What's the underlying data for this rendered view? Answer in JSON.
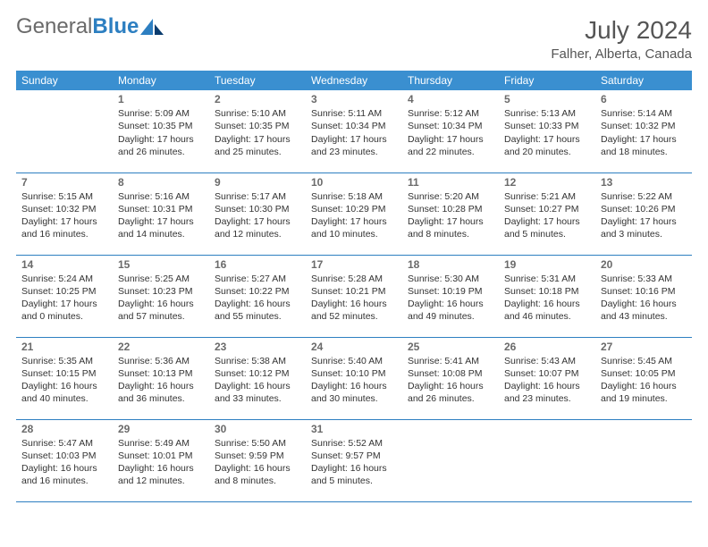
{
  "brand": {
    "part1": "General",
    "part2": "Blue"
  },
  "header": {
    "title": "July 2024",
    "location": "Falher, Alberta, Canada"
  },
  "calendar": {
    "type": "table",
    "columns": [
      "Sunday",
      "Monday",
      "Tuesday",
      "Wednesday",
      "Thursday",
      "Friday",
      "Saturday"
    ],
    "header_bg": "#3a8fd0",
    "header_fg": "#ffffff",
    "rule_color": "#2d7fc1",
    "body_fontsize": 10.5,
    "daynum_color": "#6a6a6a",
    "rows": [
      [
        null,
        {
          "n": "1",
          "sr": "5:09 AM",
          "ss": "10:35 PM",
          "dl": "17 hours and 26 minutes."
        },
        {
          "n": "2",
          "sr": "5:10 AM",
          "ss": "10:35 PM",
          "dl": "17 hours and 25 minutes."
        },
        {
          "n": "3",
          "sr": "5:11 AM",
          "ss": "10:34 PM",
          "dl": "17 hours and 23 minutes."
        },
        {
          "n": "4",
          "sr": "5:12 AM",
          "ss": "10:34 PM",
          "dl": "17 hours and 22 minutes."
        },
        {
          "n": "5",
          "sr": "5:13 AM",
          "ss": "10:33 PM",
          "dl": "17 hours and 20 minutes."
        },
        {
          "n": "6",
          "sr": "5:14 AM",
          "ss": "10:32 PM",
          "dl": "17 hours and 18 minutes."
        }
      ],
      [
        {
          "n": "7",
          "sr": "5:15 AM",
          "ss": "10:32 PM",
          "dl": "17 hours and 16 minutes."
        },
        {
          "n": "8",
          "sr": "5:16 AM",
          "ss": "10:31 PM",
          "dl": "17 hours and 14 minutes."
        },
        {
          "n": "9",
          "sr": "5:17 AM",
          "ss": "10:30 PM",
          "dl": "17 hours and 12 minutes."
        },
        {
          "n": "10",
          "sr": "5:18 AM",
          "ss": "10:29 PM",
          "dl": "17 hours and 10 minutes."
        },
        {
          "n": "11",
          "sr": "5:20 AM",
          "ss": "10:28 PM",
          "dl": "17 hours and 8 minutes."
        },
        {
          "n": "12",
          "sr": "5:21 AM",
          "ss": "10:27 PM",
          "dl": "17 hours and 5 minutes."
        },
        {
          "n": "13",
          "sr": "5:22 AM",
          "ss": "10:26 PM",
          "dl": "17 hours and 3 minutes."
        }
      ],
      [
        {
          "n": "14",
          "sr": "5:24 AM",
          "ss": "10:25 PM",
          "dl": "17 hours and 0 minutes."
        },
        {
          "n": "15",
          "sr": "5:25 AM",
          "ss": "10:23 PM",
          "dl": "16 hours and 57 minutes."
        },
        {
          "n": "16",
          "sr": "5:27 AM",
          "ss": "10:22 PM",
          "dl": "16 hours and 55 minutes."
        },
        {
          "n": "17",
          "sr": "5:28 AM",
          "ss": "10:21 PM",
          "dl": "16 hours and 52 minutes."
        },
        {
          "n": "18",
          "sr": "5:30 AM",
          "ss": "10:19 PM",
          "dl": "16 hours and 49 minutes."
        },
        {
          "n": "19",
          "sr": "5:31 AM",
          "ss": "10:18 PM",
          "dl": "16 hours and 46 minutes."
        },
        {
          "n": "20",
          "sr": "5:33 AM",
          "ss": "10:16 PM",
          "dl": "16 hours and 43 minutes."
        }
      ],
      [
        {
          "n": "21",
          "sr": "5:35 AM",
          "ss": "10:15 PM",
          "dl": "16 hours and 40 minutes."
        },
        {
          "n": "22",
          "sr": "5:36 AM",
          "ss": "10:13 PM",
          "dl": "16 hours and 36 minutes."
        },
        {
          "n": "23",
          "sr": "5:38 AM",
          "ss": "10:12 PM",
          "dl": "16 hours and 33 minutes."
        },
        {
          "n": "24",
          "sr": "5:40 AM",
          "ss": "10:10 PM",
          "dl": "16 hours and 30 minutes."
        },
        {
          "n": "25",
          "sr": "5:41 AM",
          "ss": "10:08 PM",
          "dl": "16 hours and 26 minutes."
        },
        {
          "n": "26",
          "sr": "5:43 AM",
          "ss": "10:07 PM",
          "dl": "16 hours and 23 minutes."
        },
        {
          "n": "27",
          "sr": "5:45 AM",
          "ss": "10:05 PM",
          "dl": "16 hours and 19 minutes."
        }
      ],
      [
        {
          "n": "28",
          "sr": "5:47 AM",
          "ss": "10:03 PM",
          "dl": "16 hours and 16 minutes."
        },
        {
          "n": "29",
          "sr": "5:49 AM",
          "ss": "10:01 PM",
          "dl": "16 hours and 12 minutes."
        },
        {
          "n": "30",
          "sr": "5:50 AM",
          "ss": "9:59 PM",
          "dl": "16 hours and 8 minutes."
        },
        {
          "n": "31",
          "sr": "5:52 AM",
          "ss": "9:57 PM",
          "dl": "16 hours and 5 minutes."
        },
        null,
        null,
        null
      ]
    ],
    "labels": {
      "sunrise": "Sunrise:",
      "sunset": "Sunset:",
      "daylight": "Daylight:"
    }
  }
}
